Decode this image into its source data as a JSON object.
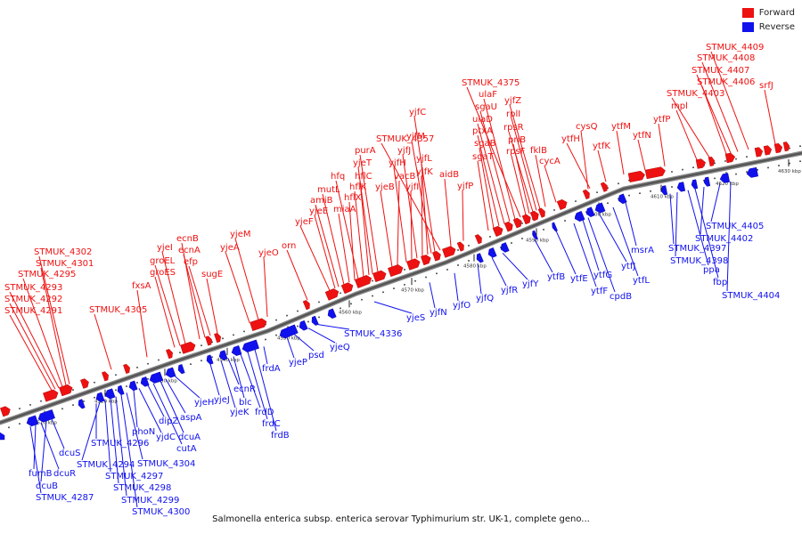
{
  "legend": {
    "forward_label": "Forward",
    "reverse_label": "Reverse",
    "forward_color": "#ee1111",
    "reverse_color": "#1111ee"
  },
  "caption": "Salmonella enterica subsp. enterica serovar Typhimurium str. UK-1, complete geno...",
  "kbp_marks": [
    "4510 kbp",
    "4520 kbp",
    "4530 kbp",
    "4540 kbp",
    "4550 kbp",
    "4560 kbp",
    "4570 kbp",
    "4580 kbp",
    "4590 kbp",
    "4600 kbp",
    "4610 kbp",
    "4620 kbp",
    "4630 kbp"
  ],
  "forward_genes": [
    "STMUK_4302",
    "STMUK_4301",
    "STMUK_4295",
    "STMUK_4293",
    "STMUK_4292",
    "STMUK_4291",
    "STMUK_4305",
    "fxsA",
    "groES",
    "groEL",
    "yjeI",
    "ecnB",
    "ecnA",
    "efp",
    "sugE",
    "yjeA",
    "yjeM",
    "yjeO",
    "orn",
    "yjeF",
    "yjeE",
    "amiB",
    "mutL",
    "miaA",
    "hflX",
    "hfq",
    "hflK",
    "hflC",
    "yjeT",
    "purA",
    "yjeB",
    "vacB",
    "yjfH",
    "yjfI",
    "yjfJ",
    "yjfK",
    "yjfL",
    "yjfM",
    "yjfC",
    "STMUK_4357",
    "aidB",
    "yjfP",
    "sgaT",
    "sgaB",
    "ptxA",
    "ulaD",
    "sgaU",
    "ulaF",
    "STMUK_4375",
    "rpsF",
    "priB",
    "rpsR",
    "rplI",
    "yjfZ",
    "fklB",
    "cycA",
    "cysQ",
    "ytfH",
    "ytfK",
    "ytfM",
    "ytfN",
    "ytfP",
    "mpl",
    "STMUK_4403",
    "STMUK_4406",
    "STMUK_4407",
    "STMUK_4408",
    "STMUK_4409",
    "srfJ"
  ],
  "reverse_genes": [
    "fumB",
    "dcuR",
    "dcuB",
    "dcuS",
    "STMUK_4287",
    "STMUK_4296",
    "STMUK_4294",
    "STMUK_4297",
    "STMUK_4298",
    "STMUK_4299",
    "STMUK_4300",
    "STMUK_4304",
    "phoN",
    "yjdC",
    "dipZ",
    "cutA",
    "dcuA",
    "aspA",
    "yjeH",
    "yjeJ",
    "yjeK",
    "ecnR",
    "blc",
    "frdD",
    "frdC",
    "frdB",
    "frdA",
    "yjeP",
    "psd",
    "yjeQ",
    "STMUK_4336",
    "yjeS",
    "yjfN",
    "yjfO",
    "yjfQ",
    "yjfR",
    "yjfY",
    "ytfB",
    "ytfE",
    "ytfF",
    "ytfG",
    "cpdB",
    "ytfJ",
    "ytfL",
    "msrA",
    "STMUK_4397",
    "STMUK_4398",
    "ppa",
    "fbp",
    "STMUK_4402",
    "STMUK_4405",
    "STMUK_4404"
  ]
}
